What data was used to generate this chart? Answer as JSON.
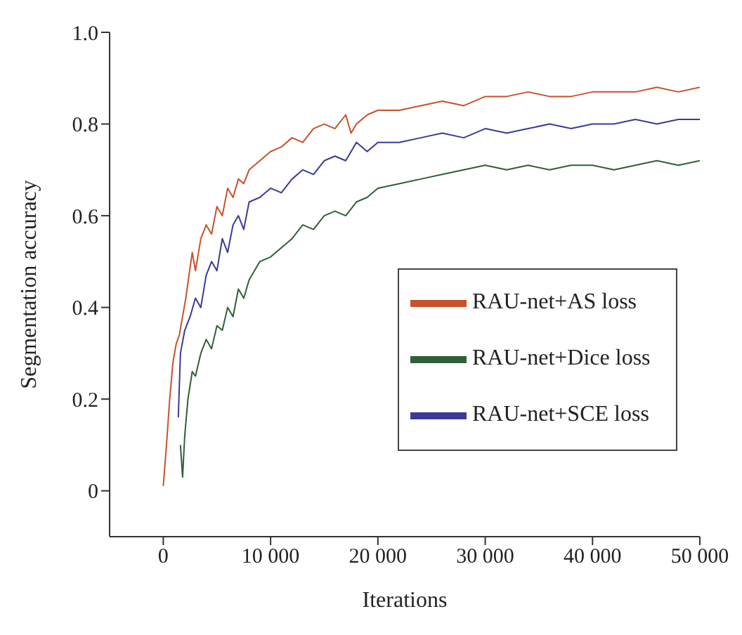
{
  "chart_data": {
    "type": "line",
    "xlabel": "Iterations",
    "ylabel": "Segmentation accuracy",
    "xlim": [
      -5000,
      50000
    ],
    "ylim": [
      -0.1,
      1.0
    ],
    "xticks": [
      0,
      {
        "value": 10000,
        "label": "10 000"
      },
      {
        "value": 20000,
        "label": "20 000"
      },
      {
        "value": 30000,
        "label": "30 000"
      },
      {
        "value": 40000,
        "label": "40 000"
      },
      {
        "value": 50000,
        "label": "50 000"
      }
    ],
    "yticks": [
      0,
      0.2,
      0.4,
      0.6,
      0.8,
      {
        "value": 1.0,
        "label": "1.0"
      }
    ],
    "grid": false,
    "legend": "right",
    "marker": "none",
    "line_style": "solid",
    "series": [
      {
        "name": "RAU-net+AS loss",
        "color": "#c9512b",
        "x": [
          0,
          300,
          600,
          900,
          1200,
          1500,
          1800,
          2100,
          2400,
          2700,
          3000,
          3500,
          4000,
          4500,
          5000,
          5500,
          6000,
          6500,
          7000,
          7500,
          8000,
          9000,
          10000,
          11000,
          12000,
          13000,
          14000,
          15000,
          16000,
          17000,
          17500,
          18000,
          19000,
          20000,
          22000,
          24000,
          26000,
          28000,
          30000,
          32000,
          34000,
          36000,
          38000,
          40000,
          42000,
          44000,
          46000,
          48000,
          50000
        ],
        "values": [
          0.01,
          0.1,
          0.2,
          0.28,
          0.32,
          0.34,
          0.38,
          0.42,
          0.47,
          0.52,
          0.48,
          0.55,
          0.58,
          0.56,
          0.62,
          0.6,
          0.66,
          0.64,
          0.68,
          0.67,
          0.7,
          0.72,
          0.74,
          0.75,
          0.77,
          0.76,
          0.79,
          0.8,
          0.79,
          0.82,
          0.78,
          0.8,
          0.82,
          0.83,
          0.83,
          0.84,
          0.85,
          0.84,
          0.86,
          0.86,
          0.87,
          0.86,
          0.86,
          0.87,
          0.87,
          0.87,
          0.88,
          0.87,
          0.88
        ]
      },
      {
        "name": "RAU-net+Dice loss",
        "color": "#2f5f36",
        "x": [
          1600,
          1800,
          2000,
          2300,
          2700,
          3000,
          3500,
          4000,
          4500,
          5000,
          5500,
          6000,
          6500,
          7000,
          7500,
          8000,
          9000,
          10000,
          11000,
          12000,
          13000,
          14000,
          15000,
          16000,
          17000,
          18000,
          19000,
          20000,
          22000,
          24000,
          26000,
          28000,
          30000,
          32000,
          34000,
          36000,
          38000,
          40000,
          42000,
          44000,
          46000,
          48000,
          50000
        ],
        "values": [
          0.1,
          0.03,
          0.12,
          0.2,
          0.26,
          0.25,
          0.3,
          0.33,
          0.31,
          0.36,
          0.35,
          0.4,
          0.38,
          0.44,
          0.42,
          0.46,
          0.5,
          0.51,
          0.53,
          0.55,
          0.58,
          0.57,
          0.6,
          0.61,
          0.6,
          0.63,
          0.64,
          0.66,
          0.67,
          0.68,
          0.69,
          0.7,
          0.71,
          0.7,
          0.71,
          0.7,
          0.71,
          0.71,
          0.7,
          0.71,
          0.72,
          0.71,
          0.72
        ]
      },
      {
        "name": "RAU-net+SCE loss",
        "color": "#3a3a9a",
        "x": [
          1400,
          1600,
          2000,
          2500,
          3000,
          3500,
          4000,
          4500,
          5000,
          5500,
          6000,
          6500,
          7000,
          7500,
          8000,
          9000,
          10000,
          11000,
          12000,
          13000,
          14000,
          15000,
          16000,
          17000,
          18000,
          19000,
          20000,
          22000,
          24000,
          26000,
          28000,
          30000,
          32000,
          34000,
          36000,
          38000,
          40000,
          42000,
          44000,
          46000,
          48000,
          50000
        ],
        "values": [
          0.16,
          0.3,
          0.35,
          0.38,
          0.42,
          0.4,
          0.47,
          0.5,
          0.48,
          0.55,
          0.52,
          0.58,
          0.6,
          0.57,
          0.63,
          0.64,
          0.66,
          0.65,
          0.68,
          0.7,
          0.69,
          0.72,
          0.73,
          0.72,
          0.76,
          0.74,
          0.76,
          0.76,
          0.77,
          0.78,
          0.77,
          0.79,
          0.78,
          0.79,
          0.8,
          0.79,
          0.8,
          0.8,
          0.81,
          0.8,
          0.81,
          0.81
        ]
      }
    ]
  }
}
